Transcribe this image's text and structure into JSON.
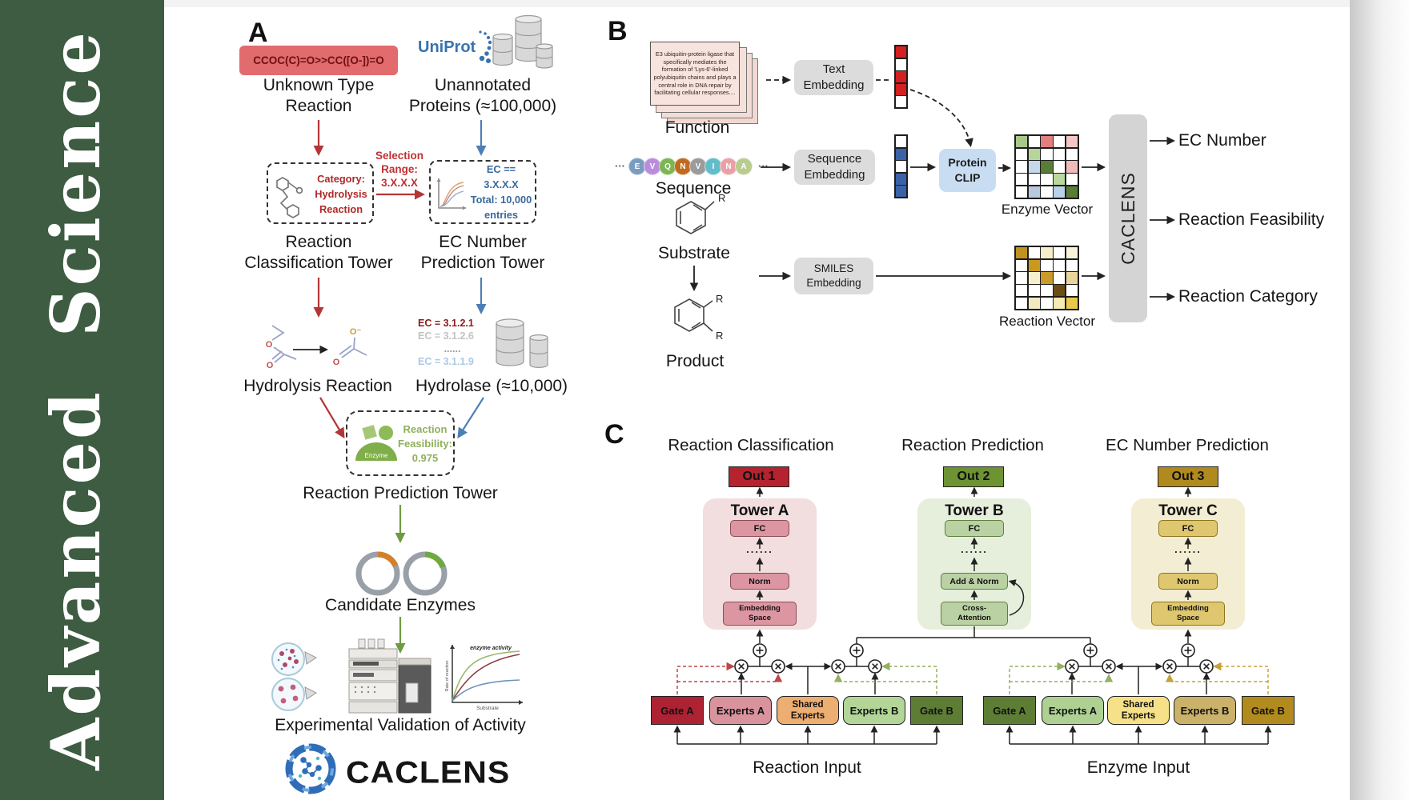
{
  "journal": {
    "name": "Advanced Science"
  },
  "panelA": {
    "label": "A",
    "smiles": "CCOC(C)=O>>CC([O-])=O",
    "unknown_reaction_label": "Unknown Type\nReaction",
    "uniprot_label": "UniProt",
    "unannotated_label": "Unannotated\nProteins (≈100,000)",
    "category_text": "Category:\nHydrolysis\nReaction",
    "selection_text": "Selection\nRange:\n3.X.X.X",
    "ec_filter_text": "EC == 3.X.X.X\nTotal: 10,000\nentries",
    "classification_tower_label": "Reaction\nClassification Tower",
    "ec_tower_label": "EC Number\nPrediction Tower",
    "hydrolysis_label": "Hydrolysis Reaction",
    "ec_list": [
      "EC = 3.1.2.1",
      "EC = 3.1.2.6",
      "......",
      "EC = 3.1.1.9"
    ],
    "hydrolase_label": "Hydrolase (≈10,000)",
    "enzyme_icon_label": "Enzyme",
    "feasibility_text": "Reaction\nFeasibility:\n0.975",
    "prediction_tower_label": "Reaction Prediction Tower",
    "candidate_label": "Candidate Enzymes",
    "validation_label": "Experimental Validation of Activity",
    "chart": {
      "annotation": "enzyme activity",
      "ylabel": "Rate of reaction",
      "xlabel": "Substrate"
    },
    "atoms": {
      "o": "O",
      "o_minus": "O⁻"
    },
    "logo_text": "CACLENS"
  },
  "panelB": {
    "label": "B",
    "function_card_text": "E3 ubiquitin-protein ligase that specifically mediates the formation of 'Lys-6'-linked polyubiquitin chains and plays a central role in DNA repair by facilitating cellular responses....",
    "function_label": "Function",
    "ellipsis": "···",
    "sequence_residues": [
      {
        "letter": "E",
        "color": "#7b9cc0"
      },
      {
        "letter": "V",
        "color": "#b98ddb"
      },
      {
        "letter": "Q",
        "color": "#7cb552"
      },
      {
        "letter": "N",
        "color": "#bf6a1f"
      },
      {
        "letter": "V",
        "color": "#9b9b9b"
      },
      {
        "letter": "I",
        "color": "#62bcc9"
      },
      {
        "letter": "N",
        "color": "#eb9fa6"
      },
      {
        "letter": "A",
        "color": "#b8cc8f"
      }
    ],
    "sequence_label": "Sequence",
    "substrate_label": "Substrate",
    "product_label": "Product",
    "r_group": "R",
    "text_embedding_label": "Text\nEmbedding",
    "sequence_embedding_label": "Sequence\nEmbedding",
    "smiles_embedding_label": "SMILES\nEmbedding",
    "protein_clip_label": "Protein\nCLIP",
    "text_vector": [
      "#d32020",
      "#ffffff",
      "#d32020",
      "#d32020",
      "#ffffff"
    ],
    "sequence_vector": [
      "#ffffff",
      "#3a62a8",
      "#ffffff",
      "#3a62a8",
      "#3a62a8"
    ],
    "enzyme_vector_label": "Enzyme Vector",
    "reaction_vector_label": "Reaction Vector",
    "enzyme_grid": [
      [
        "#a9c98b",
        "#ffffff",
        "#e37f7f",
        "#ffffff",
        "#f4c6c6"
      ],
      [
        "#ffffff",
        "#b6d59b",
        "#ffffff",
        "#ffffff",
        "#ffffff"
      ],
      [
        "#ffffff",
        "#c6d9ea",
        "#5a7c39",
        "#ffffff",
        "#f1baba"
      ],
      [
        "#ffffff",
        "#ffffff",
        "#ffffff",
        "#b9d99b",
        "#ffffff"
      ],
      [
        "#ffffff",
        "#b9c9dd",
        "#ffffff",
        "#b9d1e9",
        "#5a7c34"
      ]
    ],
    "reaction_grid": [
      [
        "#c29220",
        "#ffffff",
        "#f6edc9",
        "#ffffff",
        "#f9f1d9"
      ],
      [
        "#ffffff",
        "#c9991f",
        "#ffffff",
        "#ffffff",
        "#ffffff"
      ],
      [
        "#ffffff",
        "#f6efce",
        "#c99b28",
        "#ffffff",
        "#e9d59b"
      ],
      [
        "#ffffff",
        "#ffffff",
        "#ffffff",
        "#6b4e10",
        "#ffffff"
      ],
      [
        "#ffffff",
        "#f3e9c1",
        "#ffffff",
        "#f6e9b1",
        "#e9c94b"
      ]
    ],
    "core_label": "CACLENS",
    "outputs": [
      "EC Number",
      "Reaction Feasibility",
      "Reaction Category"
    ]
  },
  "panelC": {
    "label": "C",
    "towers": [
      {
        "title": "Reaction Classification",
        "out": "Out 1",
        "name": "Tower A",
        "top_block": "FC",
        "dots": "......",
        "mid_block": "Norm",
        "bottom_block": "Embedding\nSpace"
      },
      {
        "title": "Reaction Prediction",
        "out": "Out 2",
        "name": "Tower B",
        "top_block": "FC",
        "dots": "......",
        "mid_block": "Add & Norm",
        "bottom_block": "Cross-\nAttention"
      },
      {
        "title": "EC Number Prediction",
        "out": "Out 3",
        "name": "Tower C",
        "top_block": "FC",
        "dots": "......",
        "mid_block": "Norm",
        "bottom_block": "Embedding\nSpace"
      }
    ],
    "moe_groups": [
      {
        "gate_a": "Gate A",
        "experts_a": "Experts A",
        "shared": "Shared\nExperts",
        "experts_b": "Experts B",
        "gate_b": "Gate B",
        "input_label": "Reaction Input"
      },
      {
        "gate_a": "Gate A",
        "experts_a": "Experts A",
        "shared": "Shared\nExperts",
        "experts_b": "Experts B",
        "gate_b": "Gate B",
        "input_label": "Enzyme Input"
      }
    ]
  },
  "colors": {
    "sidebar_green": "#3d5c41",
    "accent_red": "#b43535",
    "accent_blue": "#4c7fb5",
    "accent_green": "#6f9a44",
    "uniprot_blue": "#3873ae"
  }
}
